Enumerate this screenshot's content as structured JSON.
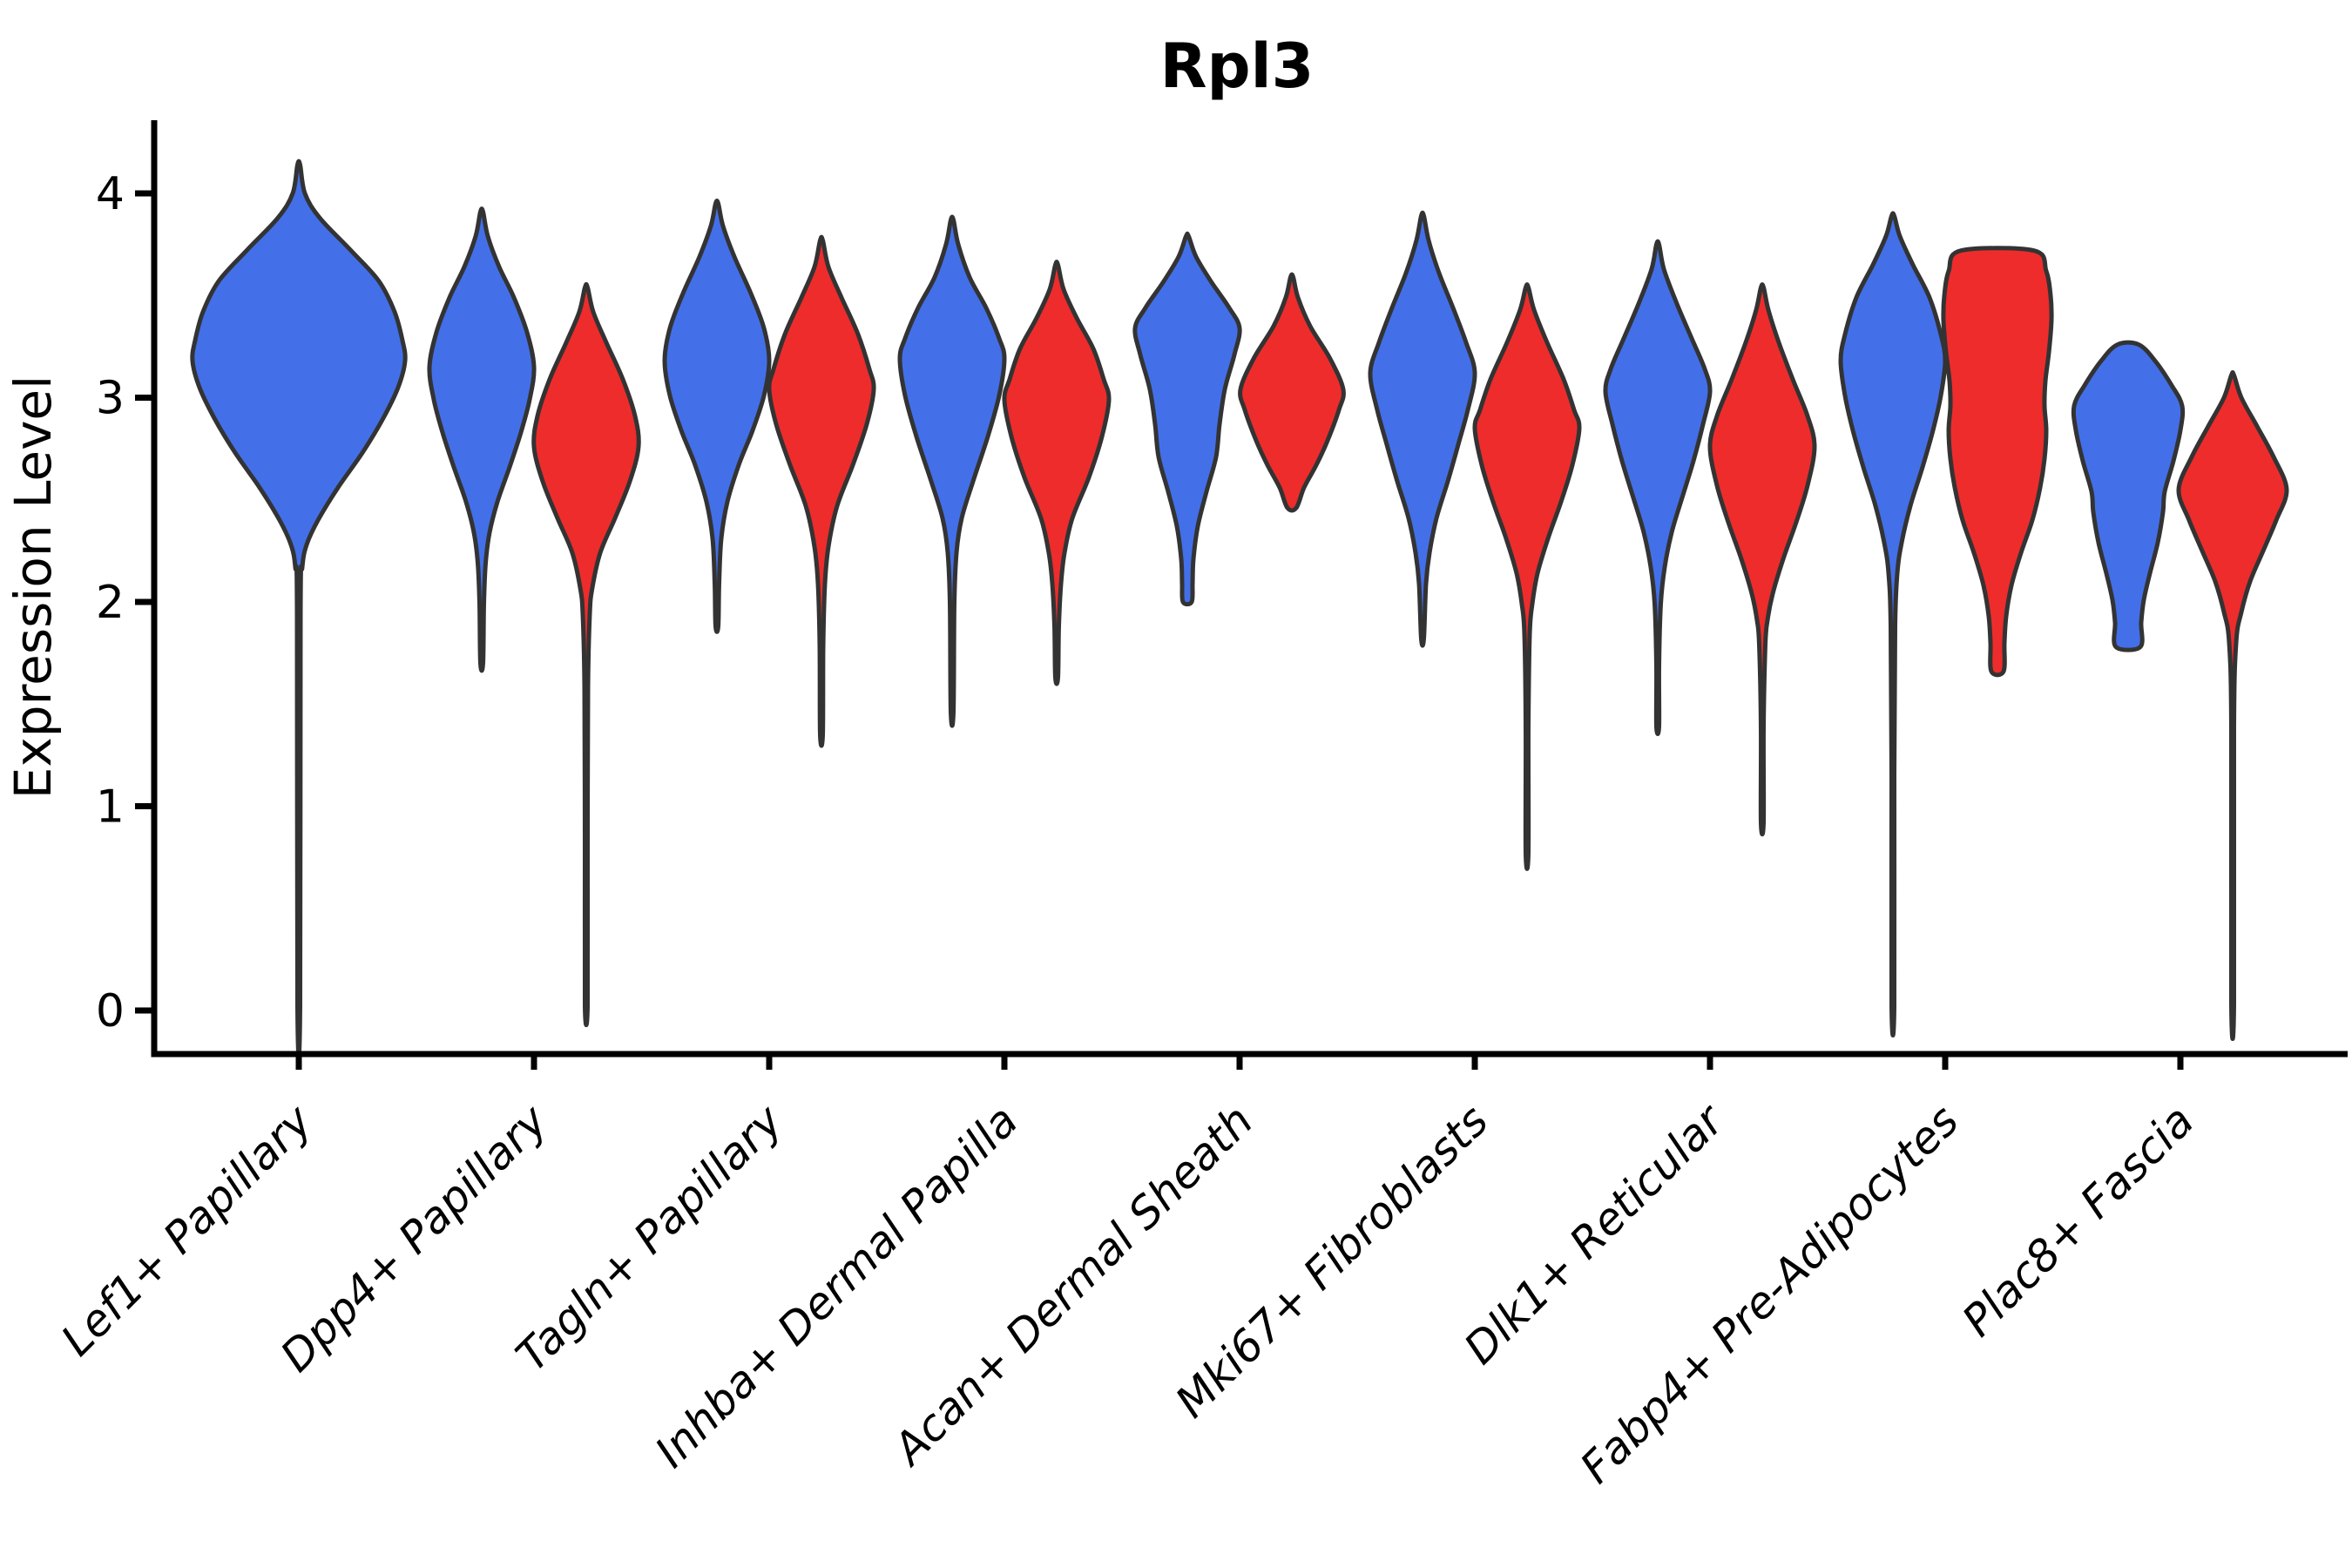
{
  "figure": {
    "title": "Rpl3",
    "ylabel": "Expression Level"
  },
  "chart_data": {
    "type": "violin",
    "title": "Rpl3",
    "xlabel": "",
    "ylabel": "Expression Level",
    "ylim": [
      -0.21,
      4.35
    ],
    "yticks": [
      0,
      1,
      2,
      3,
      4
    ],
    "grid": false,
    "legend_position": "none",
    "x_tick_rotation": 45,
    "colors": {
      "blue_fill": "#4370e9",
      "red_fill": "#ee2c2c",
      "outline": "#333333",
      "axis": "#000000",
      "background": "#ffffff"
    },
    "categories": [
      "Lef1+ Papillary",
      "Dpp4+ Papillary",
      "Tagln+ Papillary",
      "Inhba+ Dermal Papilla",
      "Acan+ Dermal Sheath",
      "Mki67+ Fibroblasts",
      "Dlk1+ Reticular",
      "Fabp4+ Pre-Adipocytes",
      "Plac8+ Fascia"
    ],
    "violins": [
      {
        "category": "Lef1+ Papillary",
        "category_index": 0,
        "split": "blue",
        "x_offset": 0,
        "min": 0.0,
        "max": 4.14,
        "peak": 3.18,
        "profile": [
          [
            4.14,
            1.5
          ],
          [
            4.0,
            7
          ],
          [
            3.88,
            24
          ],
          [
            3.72,
            60
          ],
          [
            3.57,
            92
          ],
          [
            3.42,
            110
          ],
          [
            3.28,
            119
          ],
          [
            3.18,
            122
          ],
          [
            3.05,
            114
          ],
          [
            2.9,
            97
          ],
          [
            2.73,
            73
          ],
          [
            2.56,
            45
          ],
          [
            2.4,
            22
          ],
          [
            2.28,
            9
          ],
          [
            2.17,
            4
          ],
          [
            1.95,
            2
          ],
          [
            0.02,
            1.5
          ]
        ]
      },
      {
        "category": "Dpp4+ Papillary",
        "category_index": 1,
        "split": "blue",
        "x_offset": -60,
        "min": 1.7,
        "max": 3.91,
        "peak": 3.15,
        "profile": [
          [
            3.91,
            1.5
          ],
          [
            3.79,
            7
          ],
          [
            3.64,
            20
          ],
          [
            3.49,
            37
          ],
          [
            3.32,
            52
          ],
          [
            3.15,
            60
          ],
          [
            2.99,
            55
          ],
          [
            2.83,
            45
          ],
          [
            2.66,
            32
          ],
          [
            2.49,
            18
          ],
          [
            2.34,
            9
          ],
          [
            2.19,
            4.5
          ],
          [
            1.99,
            2.5
          ],
          [
            1.7,
            1.5
          ]
        ]
      },
      {
        "category": "Dpp4+ Papillary",
        "category_index": 1,
        "split": "red",
        "x_offset": 60,
        "min": 0.0,
        "max": 3.54,
        "peak": 2.76,
        "profile": [
          [
            3.54,
            1.5
          ],
          [
            3.42,
            8
          ],
          [
            3.27,
            23
          ],
          [
            3.09,
            42
          ],
          [
            2.91,
            56
          ],
          [
            2.76,
            60
          ],
          [
            2.59,
            50
          ],
          [
            2.41,
            33
          ],
          [
            2.24,
            16
          ],
          [
            2.07,
            7
          ],
          [
            1.94,
            4
          ],
          [
            1.58,
            2
          ],
          [
            0.75,
            1.5
          ],
          [
            0.02,
            1.5
          ]
        ]
      },
      {
        "category": "Tagln+ Papillary",
        "category_index": 2,
        "split": "blue",
        "x_offset": -60,
        "min": 1.88,
        "max": 3.95,
        "peak": 3.18,
        "profile": [
          [
            3.95,
            1.5
          ],
          [
            3.84,
            7
          ],
          [
            3.69,
            20
          ],
          [
            3.51,
            39
          ],
          [
            3.34,
            54
          ],
          [
            3.18,
            60
          ],
          [
            3.01,
            54
          ],
          [
            2.84,
            41
          ],
          [
            2.67,
            25
          ],
          [
            2.49,
            12
          ],
          [
            2.31,
            5
          ],
          [
            2.09,
            2.5
          ],
          [
            1.88,
            1.5
          ]
        ]
      },
      {
        "category": "Tagln+ Papillary",
        "category_index": 2,
        "split": "red",
        "x_offset": 60,
        "min": 1.35,
        "max": 3.77,
        "peak": 3.04,
        "profile": [
          [
            3.77,
            1.5
          ],
          [
            3.64,
            8
          ],
          [
            3.49,
            23
          ],
          [
            3.31,
            42
          ],
          [
            3.14,
            55
          ],
          [
            3.04,
            60
          ],
          [
            2.87,
            52
          ],
          [
            2.67,
            36
          ],
          [
            2.47,
            18
          ],
          [
            2.27,
            8
          ],
          [
            2.09,
            4
          ],
          [
            1.78,
            2
          ],
          [
            1.35,
            1.5
          ]
        ]
      },
      {
        "category": "Inhba+ Dermal Papilla",
        "category_index": 3,
        "split": "blue",
        "x_offset": -60,
        "min": 1.46,
        "max": 3.87,
        "peak": 3.19,
        "profile": [
          [
            3.87,
            1.5
          ],
          [
            3.75,
            7
          ],
          [
            3.59,
            20
          ],
          [
            3.44,
            39
          ],
          [
            3.29,
            54
          ],
          [
            3.19,
            60
          ],
          [
            3.01,
            54
          ],
          [
            2.81,
            41
          ],
          [
            2.59,
            24
          ],
          [
            2.41,
            11
          ],
          [
            2.24,
            5
          ],
          [
            1.99,
            2.5
          ],
          [
            1.46,
            1.5
          ]
        ]
      },
      {
        "category": "Inhba+ Dermal Papilla",
        "category_index": 3,
        "split": "red",
        "x_offset": 60,
        "min": 1.63,
        "max": 3.65,
        "peak": 2.99,
        "profile": [
          [
            3.65,
            1.5
          ],
          [
            3.53,
            8
          ],
          [
            3.39,
            23
          ],
          [
            3.24,
            42
          ],
          [
            3.09,
            54
          ],
          [
            2.99,
            60
          ],
          [
            2.81,
            52
          ],
          [
            2.61,
            37
          ],
          [
            2.41,
            18
          ],
          [
            2.24,
            9
          ],
          [
            2.09,
            5
          ],
          [
            1.88,
            2.5
          ],
          [
            1.63,
            1.5
          ]
        ]
      },
      {
        "category": "Acan+ Dermal Sheath",
        "category_index": 4,
        "split": "blue",
        "x_offset": -60,
        "min": 2.0,
        "max": 3.79,
        "peak": 3.34,
        "profile": [
          [
            3.79,
            1.5
          ],
          [
            3.69,
            10
          ],
          [
            3.57,
            27
          ],
          [
            3.44,
            48
          ],
          [
            3.34,
            60
          ],
          [
            3.21,
            54
          ],
          [
            3.04,
            43
          ],
          [
            2.87,
            37
          ],
          [
            2.71,
            33
          ],
          [
            2.54,
            22
          ],
          [
            2.37,
            12
          ],
          [
            2.21,
            7
          ],
          [
            2.09,
            6
          ],
          [
            2.0,
            5
          ]
        ]
      },
      {
        "category": "Acan+ Dermal Sheath",
        "category_index": 4,
        "split": "red",
        "x_offset": 60,
        "min": 2.46,
        "max": 3.59,
        "peak": 3.04,
        "profile": [
          [
            3.59,
            1.5
          ],
          [
            3.49,
            7
          ],
          [
            3.35,
            21
          ],
          [
            3.19,
            44
          ],
          [
            3.04,
            59
          ],
          [
            2.94,
            54
          ],
          [
            2.79,
            41
          ],
          [
            2.67,
            28
          ],
          [
            2.56,
            14
          ],
          [
            2.46,
            5
          ]
        ]
      },
      {
        "category": "Mki67+ Fibroblasts",
        "category_index": 5,
        "split": "blue",
        "x_offset": -60,
        "min": 1.82,
        "max": 3.89,
        "peak": 3.12,
        "profile": [
          [
            3.89,
            1.5
          ],
          [
            3.77,
            7
          ],
          [
            3.61,
            19
          ],
          [
            3.44,
            35
          ],
          [
            3.27,
            50
          ],
          [
            3.12,
            60
          ],
          [
            2.94,
            52
          ],
          [
            2.77,
            41
          ],
          [
            2.59,
            29
          ],
          [
            2.41,
            16
          ],
          [
            2.24,
            8
          ],
          [
            2.09,
            4
          ],
          [
            1.82,
            1.5
          ]
        ]
      },
      {
        "category": "Mki67+ Fibroblasts",
        "category_index": 5,
        "split": "red",
        "x_offset": 60,
        "min": 0.77,
        "max": 3.54,
        "peak": 2.85,
        "profile": [
          [
            3.54,
            1.5
          ],
          [
            3.43,
            8
          ],
          [
            3.27,
            23
          ],
          [
            3.09,
            42
          ],
          [
            2.94,
            54
          ],
          [
            2.85,
            60
          ],
          [
            2.67,
            52
          ],
          [
            2.49,
            39
          ],
          [
            2.31,
            24
          ],
          [
            2.14,
            12
          ],
          [
            1.99,
            6
          ],
          [
            1.84,
            3
          ],
          [
            1.38,
            1.5
          ],
          [
            0.77,
            1.5
          ]
        ]
      },
      {
        "category": "Dlk1+ Reticular",
        "category_index": 6,
        "split": "blue",
        "x_offset": -60,
        "min": 1.39,
        "max": 3.75,
        "peak": 3.03,
        "profile": [
          [
            3.75,
            1.5
          ],
          [
            3.63,
            7
          ],
          [
            3.47,
            21
          ],
          [
            3.29,
            39
          ],
          [
            3.14,
            54
          ],
          [
            3.03,
            60
          ],
          [
            2.87,
            52
          ],
          [
            2.69,
            41
          ],
          [
            2.51,
            28
          ],
          [
            2.34,
            16
          ],
          [
            2.17,
            8
          ],
          [
            1.99,
            3.5
          ],
          [
            1.68,
            1.5
          ],
          [
            1.39,
            1.5
          ]
        ]
      },
      {
        "category": "Dlk1+ Reticular",
        "category_index": 6,
        "split": "red",
        "x_offset": 60,
        "min": 0.92,
        "max": 3.54,
        "peak": 2.76,
        "profile": [
          [
            3.54,
            1.5
          ],
          [
            3.43,
            7
          ],
          [
            3.27,
            19
          ],
          [
            3.09,
            35
          ],
          [
            2.91,
            52
          ],
          [
            2.76,
            60
          ],
          [
            2.57,
            52
          ],
          [
            2.39,
            39
          ],
          [
            2.21,
            24
          ],
          [
            2.04,
            12
          ],
          [
            1.91,
            6
          ],
          [
            1.79,
            3.5
          ],
          [
            1.38,
            1.5
          ],
          [
            0.92,
            1.5
          ]
        ]
      },
      {
        "category": "Fabp4+ Pre-Adipocytes",
        "category_index": 7,
        "split": "blue",
        "x_offset": -60,
        "min": 0.0,
        "max": 3.89,
        "peak": 3.18,
        "profile": [
          [
            3.89,
            1.5
          ],
          [
            3.79,
            8
          ],
          [
            3.65,
            23
          ],
          [
            3.49,
            42
          ],
          [
            3.31,
            55
          ],
          [
            3.18,
            60
          ],
          [
            3.01,
            55
          ],
          [
            2.84,
            46
          ],
          [
            2.66,
            34
          ],
          [
            2.47,
            20
          ],
          [
            2.29,
            10
          ],
          [
            2.14,
            5
          ],
          [
            1.88,
            2.5
          ],
          [
            1.15,
            1.5
          ],
          [
            0.02,
            1.5
          ]
        ]
      },
      {
        "category": "Fabp4+ Pre-Adipocytes",
        "category_index": 7,
        "split": "red",
        "x_offset": 60,
        "min": 1.66,
        "max": 3.72,
        "peak": 3.38,
        "profile": [
          [
            3.72,
            42
          ],
          [
            3.62,
            56
          ],
          [
            3.5,
            61
          ],
          [
            3.38,
            62
          ],
          [
            3.22,
            59
          ],
          [
            3.08,
            55
          ],
          [
            2.96,
            54
          ],
          [
            2.84,
            56
          ],
          [
            2.7,
            54
          ],
          [
            2.56,
            49
          ],
          [
            2.4,
            40
          ],
          [
            2.24,
            27
          ],
          [
            2.08,
            16
          ],
          [
            1.93,
            10
          ],
          [
            1.8,
            8
          ],
          [
            1.66,
            7
          ]
        ]
      },
      {
        "category": "Plac8+ Fascia",
        "category_index": 8,
        "split": "blue",
        "x_offset": -60,
        "min": 1.78,
        "max": 3.26,
        "peak": 2.96,
        "profile": [
          [
            3.26,
            12
          ],
          [
            3.18,
            31
          ],
          [
            3.06,
            50
          ],
          [
            2.96,
            62
          ],
          [
            2.84,
            60
          ],
          [
            2.69,
            52
          ],
          [
            2.54,
            42
          ],
          [
            2.44,
            40
          ],
          [
            2.29,
            34
          ],
          [
            2.14,
            25
          ],
          [
            2.01,
            18
          ],
          [
            1.9,
            15
          ],
          [
            1.78,
            14
          ]
        ]
      },
      {
        "category": "Plac8+ Fascia",
        "category_index": 8,
        "split": "red",
        "x_offset": 60,
        "min": 0.0,
        "max": 3.11,
        "peak": 2.55,
        "profile": [
          [
            3.11,
            1.5
          ],
          [
            3.0,
            10
          ],
          [
            2.86,
            28
          ],
          [
            2.71,
            47
          ],
          [
            2.55,
            62
          ],
          [
            2.4,
            50
          ],
          [
            2.25,
            35
          ],
          [
            2.1,
            20
          ],
          [
            1.95,
            10
          ],
          [
            1.8,
            4
          ],
          [
            1.38,
            1.5
          ],
          [
            0.03,
            1.5
          ]
        ]
      }
    ]
  }
}
